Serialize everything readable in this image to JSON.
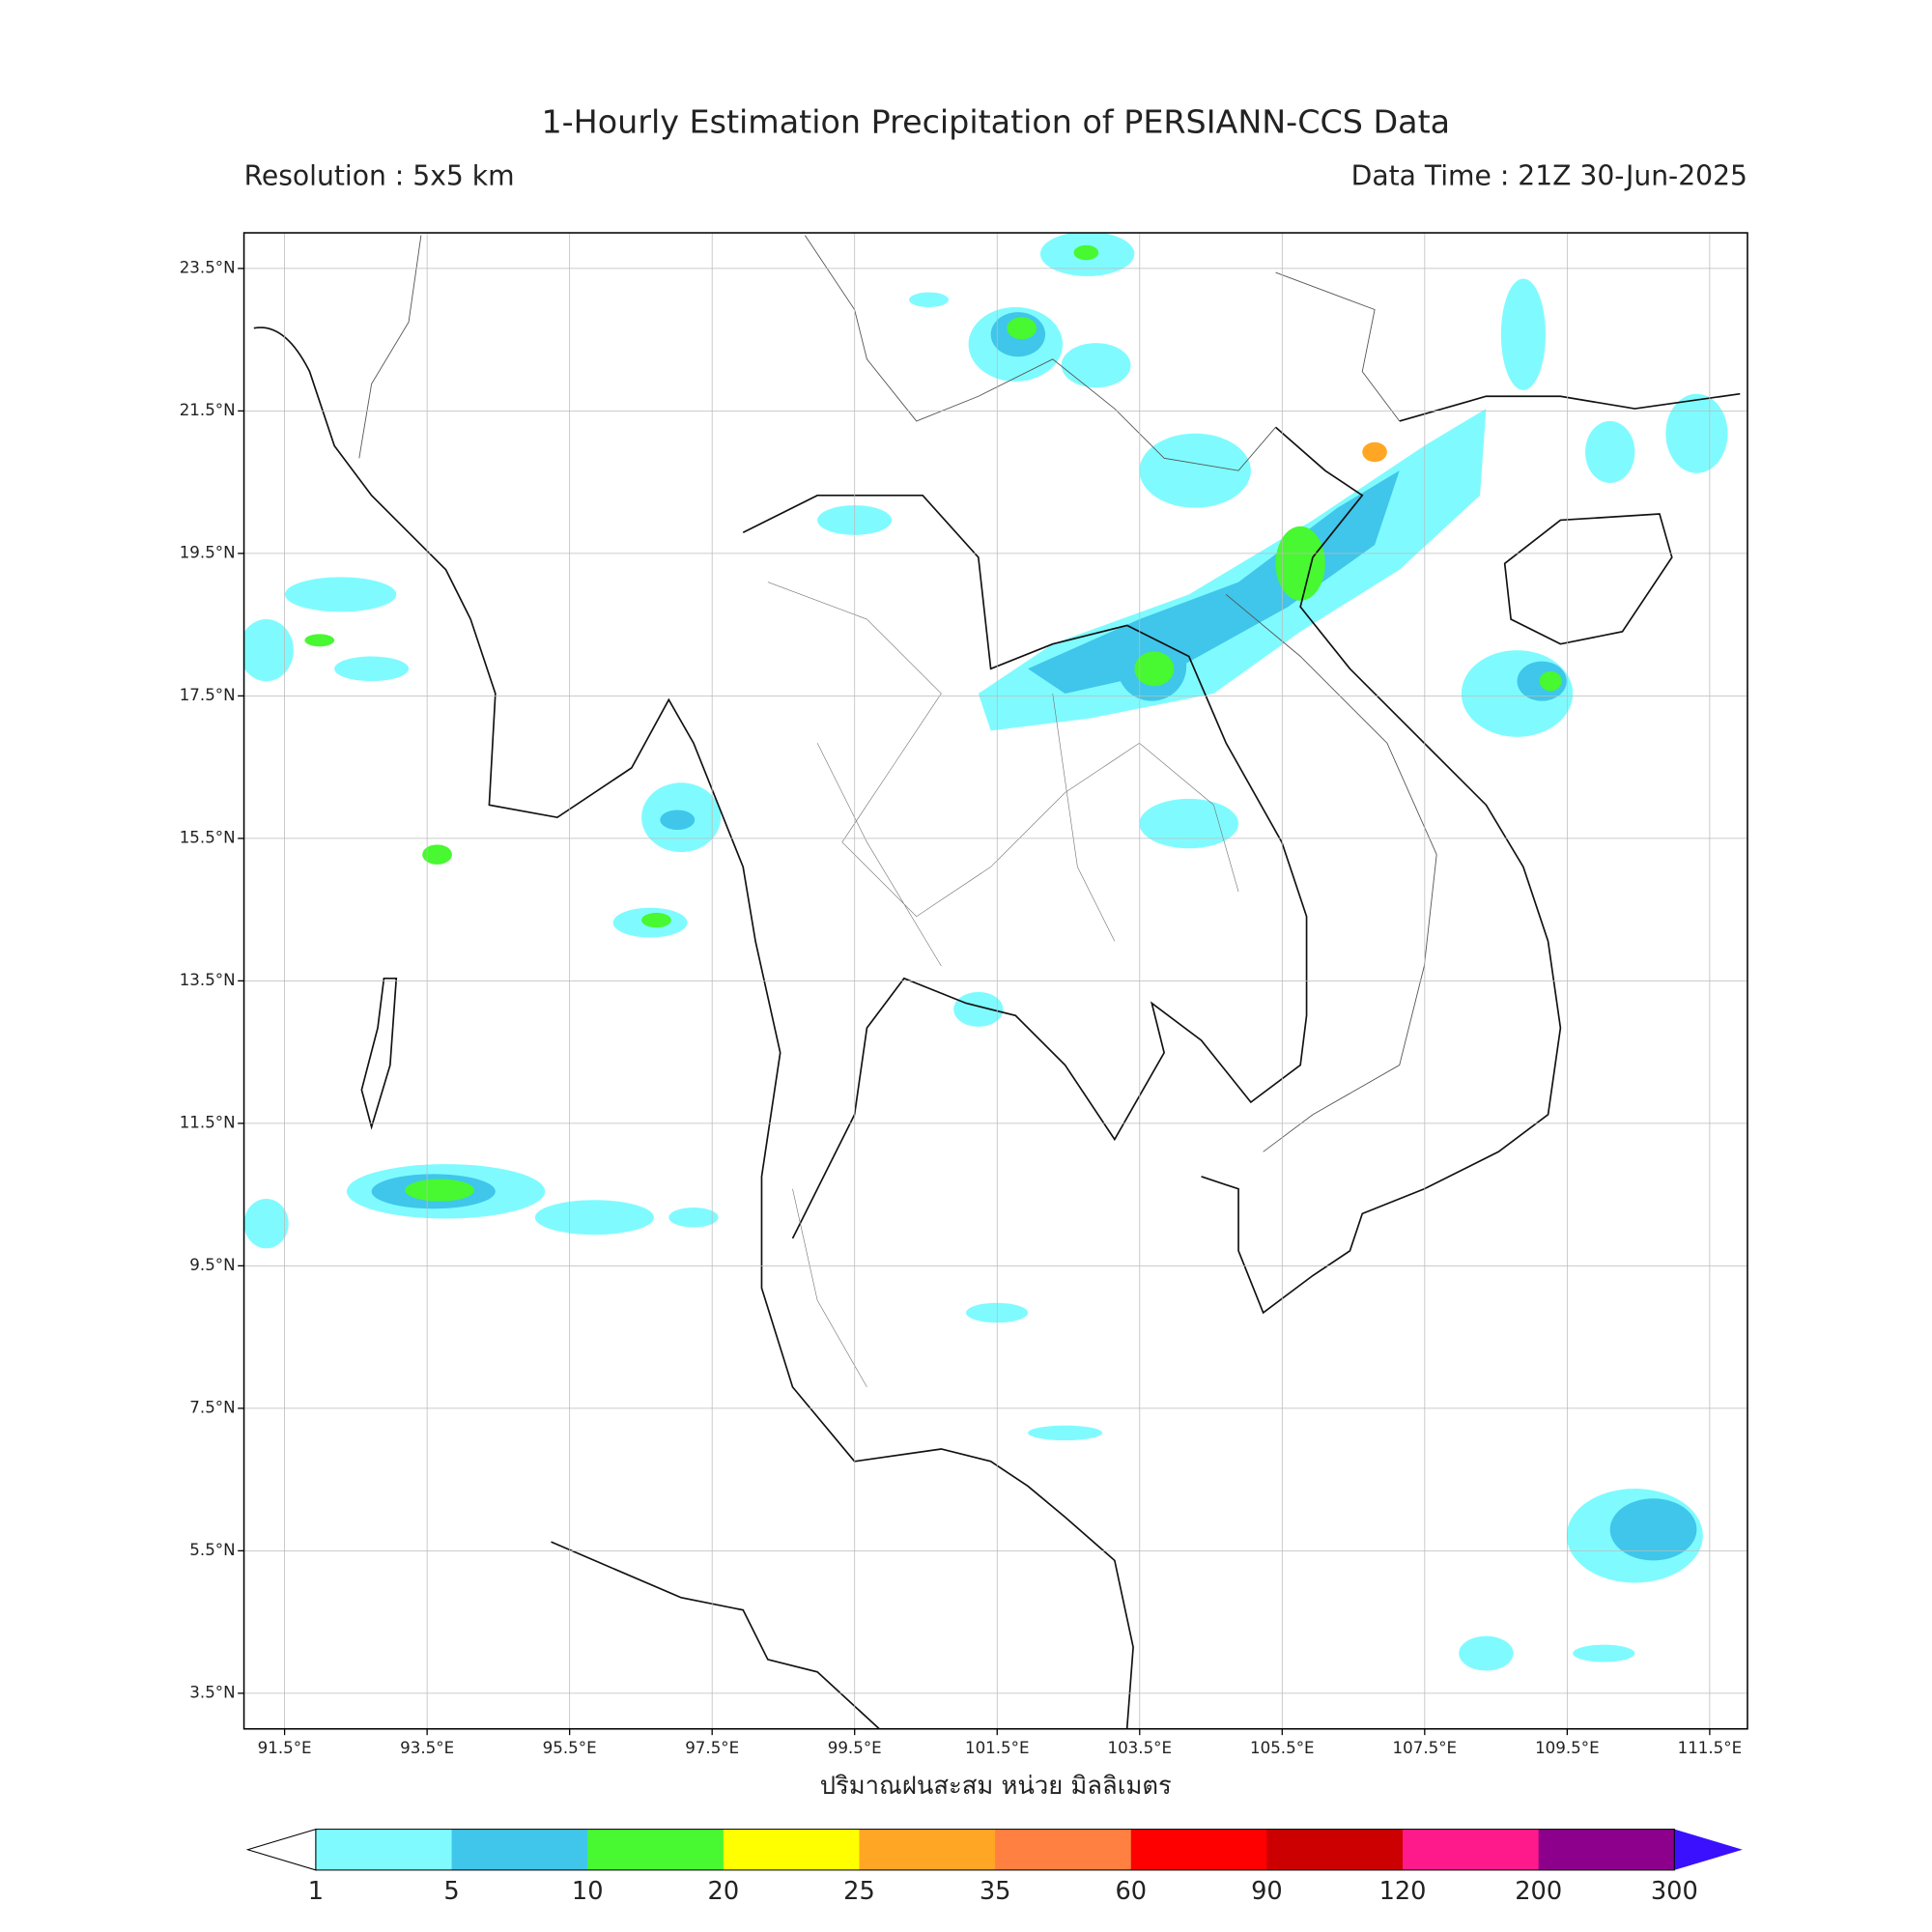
{
  "title": "1-Hourly Estimation Precipitation of PERSIANN-CCS Data",
  "resolution": "Resolution : 5x5 km",
  "data_time": "Data Time : 21Z 30-Jun-2025",
  "map": {
    "xlim": [
      90.93,
      112.03
    ],
    "ylim": [
      3.0,
      24.0
    ],
    "xticks": [
      {
        "value": 91.5,
        "label": "91.5°E"
      },
      {
        "value": 93.5,
        "label": "93.5°E"
      },
      {
        "value": 95.5,
        "label": "95.5°E"
      },
      {
        "value": 97.5,
        "label": "97.5°E"
      },
      {
        "value": 99.5,
        "label": "99.5°E"
      },
      {
        "value": 101.5,
        "label": "101.5°E"
      },
      {
        "value": 103.5,
        "label": "103.5°E"
      },
      {
        "value": 105.5,
        "label": "105.5°E"
      },
      {
        "value": 107.5,
        "label": "107.5°E"
      },
      {
        "value": 109.5,
        "label": "109.5°E"
      },
      {
        "value": 111.5,
        "label": "111.5°E"
      }
    ],
    "yticks": [
      {
        "value": 3.5,
        "label": "3.5°N"
      },
      {
        "value": 5.5,
        "label": "5.5°N"
      },
      {
        "value": 7.5,
        "label": "7.5°N"
      },
      {
        "value": 9.5,
        "label": "9.5°N"
      },
      {
        "value": 11.5,
        "label": "11.5°N"
      },
      {
        "value": 13.5,
        "label": "13.5°N"
      },
      {
        "value": 15.5,
        "label": "15.5°N"
      },
      {
        "value": 17.5,
        "label": "17.5°N"
      },
      {
        "value": 19.5,
        "label": "19.5°N"
      },
      {
        "value": 21.5,
        "label": "21.5°N"
      },
      {
        "value": 23.5,
        "label": "23.5°N"
      }
    ],
    "grid": true
  },
  "xlabel": "ปริมาณฝนสะสม หน่วย มิลลิเมตร",
  "colorbar": {
    "levels": [
      1,
      5,
      10,
      20,
      25,
      35,
      60,
      90,
      120,
      200,
      300
    ],
    "colors": [
      "#7ffbff",
      "#3fc6ea",
      "#48f830",
      "#ffff00",
      "#ffa724",
      "#ff8040",
      "#ff0000",
      "#cc0000",
      "#ff1a8c",
      "#8c008c"
    ],
    "under_color": "#ffffff",
    "over_color": "#3a10ff"
  }
}
